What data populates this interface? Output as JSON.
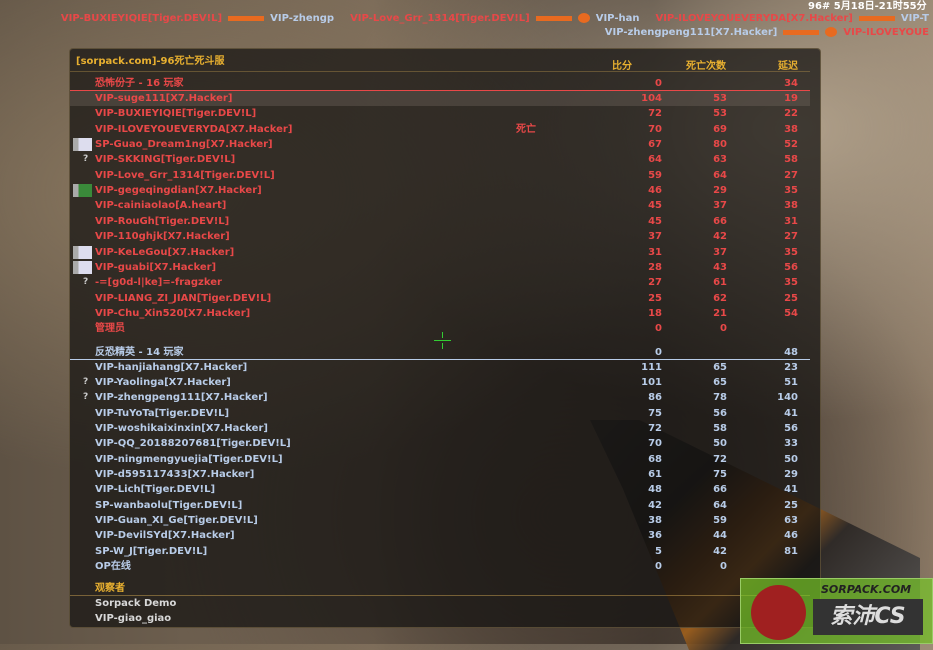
{
  "clock": "96# 5月18日-21时55分",
  "title": "[sorpack.com]-96死亡死斗服",
  "columns": {
    "score": "比分",
    "deaths": "死亡次数",
    "ping": "延迟"
  },
  "colors": {
    "terrorist": "#e84848",
    "ct": "#b8cce8",
    "accent": "#e8b030"
  },
  "terrorists": {
    "header": "恐怖份子   -   16 玩家",
    "score": "0",
    "ping": "34",
    "players": [
      {
        "name": "VIP-suge111[X7.Hacker]",
        "score": "104",
        "deaths": "53",
        "ping": "19",
        "avatar": "",
        "selected": true
      },
      {
        "name": "VIP-BUXIEYIQIE[Tiger.DEV!L]",
        "score": "72",
        "deaths": "53",
        "ping": "22",
        "avatar": ""
      },
      {
        "name": "VIP-ILOVEYOUEVERYDA[X7.Hacker]",
        "score": "70",
        "deaths": "69",
        "ping": "38",
        "avatar": "",
        "status": "死亡"
      },
      {
        "name": "SP-Guao_Dream1ng[X7.Hacker]",
        "score": "67",
        "deaths": "80",
        "ping": "52",
        "avatar": "photo"
      },
      {
        "name": "VIP-SKKING[Tiger.DEV!L]",
        "score": "64",
        "deaths": "63",
        "ping": "58",
        "avatar": "?"
      },
      {
        "name": "VIP-Love_Grr_1314[Tiger.DEV!L]",
        "score": "59",
        "deaths": "64",
        "ping": "27",
        "avatar": ""
      },
      {
        "name": "VIP-gegeqingdian[X7.Hacker]",
        "score": "46",
        "deaths": "29",
        "ping": "35",
        "avatar": "green"
      },
      {
        "name": "VIP-cainiaolao[A.heart]",
        "score": "45",
        "deaths": "37",
        "ping": "38",
        "avatar": ""
      },
      {
        "name": "VIP-RouGh[Tiger.DEV!L]",
        "score": "45",
        "deaths": "66",
        "ping": "31",
        "avatar": ""
      },
      {
        "name": "VIP-110ghjk[X7.Hacker]",
        "score": "37",
        "deaths": "42",
        "ping": "27",
        "avatar": ""
      },
      {
        "name": "VIP-KeLeGou[X7.Hacker]",
        "score": "31",
        "deaths": "37",
        "ping": "35",
        "avatar": "photo"
      },
      {
        "name": "VIP-guabi[X7.Hacker]",
        "score": "28",
        "deaths": "43",
        "ping": "56",
        "avatar": "photo"
      },
      {
        "name": "-=[g0d-l|ke]=-fragzker",
        "score": "27",
        "deaths": "61",
        "ping": "35",
        "avatar": "?"
      },
      {
        "name": "VIP-LIANG_ZI_JIAN[Tiger.DEV!L]",
        "score": "25",
        "deaths": "62",
        "ping": "25",
        "avatar": ""
      },
      {
        "name": "VIP-Chu_Xin520[X7.Hacker]",
        "score": "18",
        "deaths": "21",
        "ping": "54",
        "avatar": ""
      },
      {
        "name": "管理员",
        "score": "0",
        "deaths": "0",
        "ping": "",
        "avatar": ""
      }
    ]
  },
  "cts": {
    "header": "反恐精英   -   14 玩家",
    "score": "0",
    "ping": "48",
    "players": [
      {
        "name": "VIP-hanjiahang[X7.Hacker]",
        "score": "111",
        "deaths": "65",
        "ping": "23",
        "avatar": ""
      },
      {
        "name": "VIP-Yaolinga[X7.Hacker]",
        "score": "101",
        "deaths": "65",
        "ping": "51",
        "avatar": "?"
      },
      {
        "name": "VIP-zhengpeng111[X7.Hacker]",
        "score": "86",
        "deaths": "78",
        "ping": "140",
        "avatar": "?"
      },
      {
        "name": "VIP-TuYoTa[Tiger.DEV!L]",
        "score": "75",
        "deaths": "56",
        "ping": "41",
        "avatar": ""
      },
      {
        "name": "VIP-woshikaixinxin[X7.Hacker]",
        "score": "72",
        "deaths": "58",
        "ping": "56",
        "avatar": ""
      },
      {
        "name": "VIP-QQ_20188207681[Tiger.DEV!L]",
        "score": "70",
        "deaths": "50",
        "ping": "33",
        "avatar": ""
      },
      {
        "name": "VIP-ningmengyuejia[Tiger.DEV!L]",
        "score": "68",
        "deaths": "72",
        "ping": "50",
        "avatar": ""
      },
      {
        "name": "VIP-d595117433[X7.Hacker]",
        "score": "61",
        "deaths": "75",
        "ping": "29",
        "avatar": ""
      },
      {
        "name": "VIP-Lich[Tiger.DEV!L]",
        "score": "48",
        "deaths": "66",
        "ping": "41",
        "avatar": ""
      },
      {
        "name": "SP-wanbaolu[Tiger.DEV!L]",
        "score": "42",
        "deaths": "64",
        "ping": "25",
        "avatar": ""
      },
      {
        "name": "VIP-Guan_XI_Ge[Tiger.DEV!L]",
        "score": "38",
        "deaths": "59",
        "ping": "63",
        "avatar": ""
      },
      {
        "name": "VIP-DevilSYd[X7.Hacker]",
        "score": "36",
        "deaths": "44",
        "ping": "46",
        "avatar": ""
      },
      {
        "name": "SP-W_J[Tiger.DEV!L]",
        "score": "5",
        "deaths": "42",
        "ping": "81",
        "avatar": ""
      },
      {
        "name": "OP在线",
        "score": "0",
        "deaths": "0",
        "ping": "",
        "avatar": ""
      }
    ]
  },
  "spectators": {
    "header": "观察者",
    "players": [
      "Sorpack Demo",
      "VIP-giao_giao"
    ]
  },
  "killfeed": [
    {
      "killer": "VIP-BUXIEYIQIE[Tiger.DEV!L]",
      "victim": "VIP-zhengp",
      "headshot": false,
      "victim_team": "ct"
    },
    {
      "killer": "VIP-Love_Grr_1314[Tiger.DEV!L]",
      "victim": "VIP-han",
      "headshot": true,
      "victim_team": "ct"
    },
    {
      "killer": "VIP-ILOVEYOUEVERYDA[X7.Hacker]",
      "victim": "VIP-T",
      "headshot": false,
      "victim_team": "ct"
    },
    {
      "killer": "VIP-zhengpeng111[X7.Hacker]",
      "victim": "VIP-ILOVEYOUE",
      "headshot": true,
      "victim_team": "t",
      "killer_team": "ct"
    }
  ],
  "logo": {
    "top": "SORPACK.COM",
    "main": "索沛CS"
  }
}
